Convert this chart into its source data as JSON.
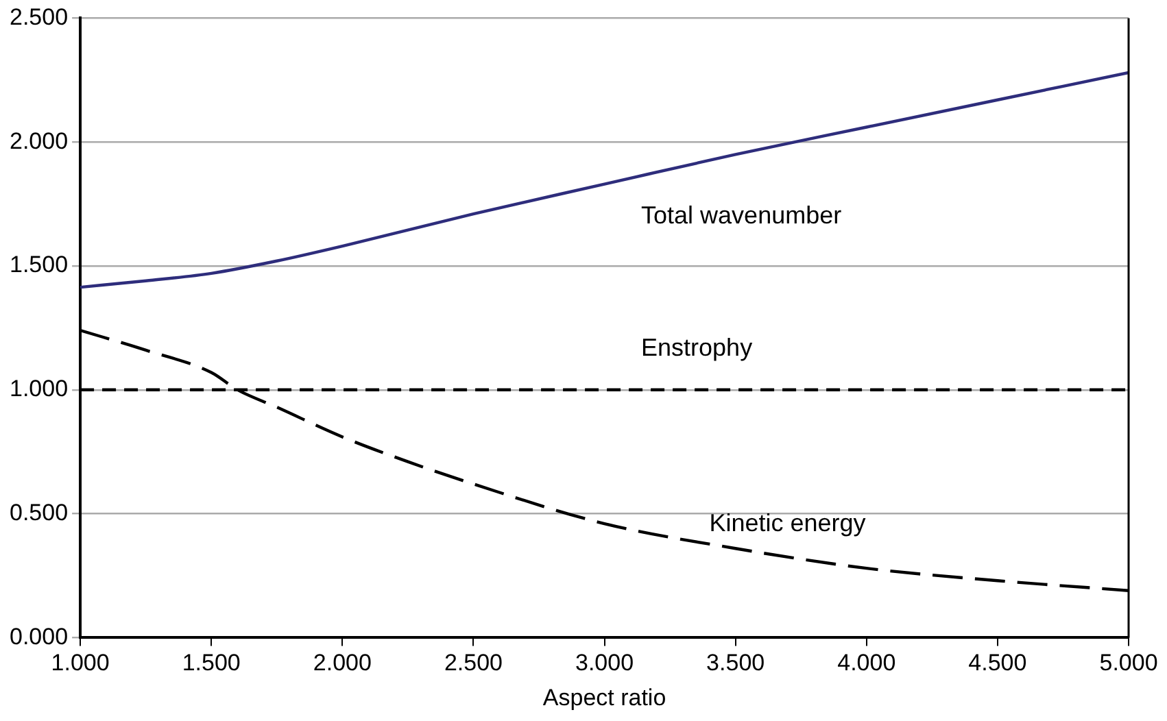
{
  "chart_data": {
    "type": "line",
    "xlabel": "Aspect ratio",
    "xlim": [
      1,
      5
    ],
    "xticks": [
      {
        "value": 1,
        "label": "1.000"
      },
      {
        "value": 1.5,
        "label": "1.500"
      },
      {
        "value": 2,
        "label": "2.000"
      },
      {
        "value": 2.5,
        "label": "2.500"
      },
      {
        "value": 3,
        "label": "3.000"
      },
      {
        "value": 3.5,
        "label": "3.500"
      },
      {
        "value": 4,
        "label": "4.000"
      },
      {
        "value": 4.5,
        "label": "4.500"
      },
      {
        "value": 5,
        "label": "5.000"
      }
    ],
    "ylim": [
      0,
      2.5
    ],
    "yticks": [
      {
        "value": 0,
        "label": "0.000"
      },
      {
        "value": 0.5,
        "label": "0.500"
      },
      {
        "value": 1,
        "label": "1.000"
      },
      {
        "value": 1.5,
        "label": "1.500"
      },
      {
        "value": 2,
        "label": "2.000"
      },
      {
        "value": 2.5,
        "label": "2.500"
      }
    ],
    "grid": "y",
    "legend": false,
    "marker": "none",
    "series": [
      {
        "name": "Total wavenumber",
        "color": "#2e2d7c",
        "line_style": "solid",
        "x": [
          1,
          1.25,
          1.5,
          1.75,
          2,
          2.5,
          3,
          3.5,
          4,
          4.5,
          5
        ],
        "values": [
          1.414,
          1.44,
          1.47,
          1.52,
          1.58,
          1.71,
          1.83,
          1.95,
          2.06,
          2.17,
          2.28
        ]
      },
      {
        "name": "Enstrophy",
        "color": "#000000",
        "line_style": "dashed",
        "x": [
          1,
          5
        ],
        "values": [
          1,
          1
        ]
      },
      {
        "name": "Kinetic energy",
        "color": "#000000",
        "line_style": "longdash",
        "x": [
          1,
          1.25,
          1.5,
          1.6,
          1.75,
          2,
          2.25,
          2.5,
          3,
          3.5,
          4,
          4.5,
          5
        ],
        "values": [
          1.24,
          1.16,
          1.07,
          1.0,
          0.93,
          0.81,
          0.71,
          0.62,
          0.46,
          0.36,
          0.28,
          0.23,
          0.19
        ]
      }
    ]
  }
}
